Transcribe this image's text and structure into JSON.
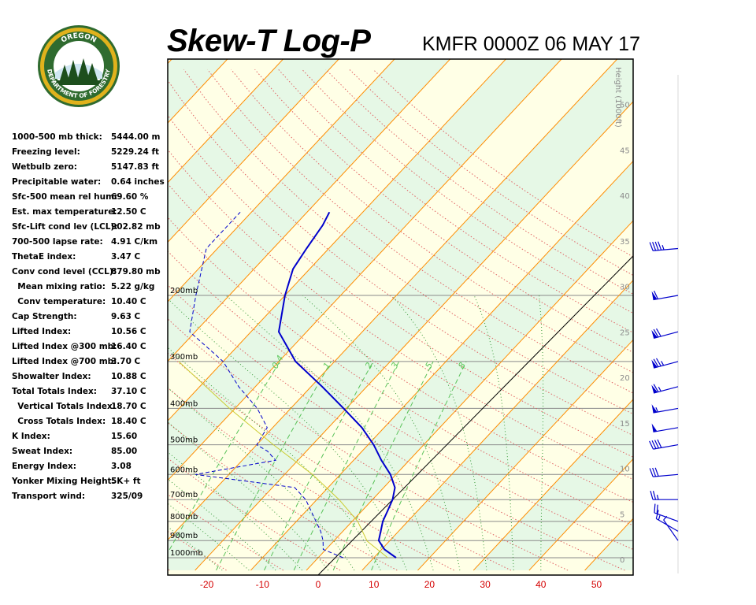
{
  "header": {
    "title": "Skew-T Log-P",
    "station": "KMFR 0000Z 06 MAY 17"
  },
  "logo": {
    "top_text": "OREGON",
    "bottom_text": "DEPARTMENT OF FORESTRY",
    "colors": {
      "ring": "#2f6b2f",
      "gold": "#e0b21c",
      "tree": "#1d4f1d"
    }
  },
  "indices": [
    {
      "label": "1000-500 mb thick:",
      "value": "5444.00 m"
    },
    {
      "label": "Freezing level:",
      "value": "5229.24 ft"
    },
    {
      "label": "Wetbulb zero:",
      "value": "5147.83 ft"
    },
    {
      "label": "Precipitable water:",
      "value": "0.64 inches"
    },
    {
      "label": "Sfc-500 mean rel hum:",
      "value": "69.60 %"
    },
    {
      "label": "Est. max temperature:",
      "value": "12.50 C"
    },
    {
      "label": "Sfc-Lift cond lev (LCL):",
      "value": "902.82 mb"
    },
    {
      "label": "700-500 lapse rate:",
      "value": "4.91 C/km"
    },
    {
      "label": "ThetaE index:",
      "value": "3.47 C"
    },
    {
      "label": "Conv cond level (CCL):",
      "value": "879.80 mb"
    },
    {
      "label": "  Mean mixing ratio:",
      "value": "5.22 g/kg"
    },
    {
      "label": "  Conv temperature:",
      "value": "10.40 C"
    },
    {
      "label": "Cap Strength:",
      "value": "9.63 C"
    },
    {
      "label": "Lifted Index:",
      "value": "10.56 C"
    },
    {
      "label": "Lifted Index @300 mb:",
      "value": "16.40 C"
    },
    {
      "label": "Lifted Index @700 mb:",
      "value": "3.70 C"
    },
    {
      "label": "Showalter Index:",
      "value": "10.88 C"
    },
    {
      "label": "Total Totals Index:",
      "value": "37.10 C"
    },
    {
      "label": "  Vertical Totals Index:",
      "value": "18.70 C"
    },
    {
      "label": "  Cross Totals Index:",
      "value": "18.40 C"
    },
    {
      "label": "K Index:",
      "value": "15.60"
    },
    {
      "label": "Sweat Index:",
      "value": "85.00"
    },
    {
      "label": "Energy Index:",
      "value": "3.08"
    },
    {
      "label": "Yonker Mixing Height:",
      "value": "5K+ ft"
    },
    {
      "label": "Transport wind:",
      "value": "325/09"
    }
  ],
  "chart_data": {
    "type": "line",
    "x_label_values": [
      "-20",
      "-10",
      "0",
      "10",
      "20",
      "30",
      "40",
      "50"
    ],
    "temp_axis": [
      -30,
      57
    ],
    "pressure_levels": [
      {
        "p": 200,
        "label": "200mb"
      },
      {
        "p": 300,
        "label": "300mb"
      },
      {
        "p": 400,
        "label": "400mb"
      },
      {
        "p": 500,
        "label": "500mb"
      },
      {
        "p": 600,
        "label": "600mb"
      },
      {
        "p": 700,
        "label": "700mb"
      },
      {
        "p": 800,
        "label": "800mb"
      },
      {
        "p": 900,
        "label": "900mb"
      },
      {
        "p": 1000,
        "label": "1000mb"
      }
    ],
    "height_axis_label": "Height (1000ft)",
    "height_ticks": [
      "0",
      "5",
      "10",
      "15",
      "20",
      "25",
      "30",
      "35",
      "40",
      "45",
      "50"
    ],
    "mixing_ratio_labels": [
      "0.4",
      "1",
      "2",
      "3",
      "5",
      "8"
    ],
    "series": [
      {
        "name": "temperature",
        "color": "#0000cc",
        "points": [
          [
            14,
            1000
          ],
          [
            10.5,
            950
          ],
          [
            8,
            900
          ],
          [
            6.8,
            850
          ],
          [
            5.5,
            800
          ],
          [
            4.6,
            750
          ],
          [
            3.6,
            700
          ],
          [
            2,
            650
          ],
          [
            -1,
            600
          ],
          [
            -5,
            550
          ],
          [
            -9,
            500
          ],
          [
            -14,
            450
          ],
          [
            -20.5,
            400
          ],
          [
            -28,
            350
          ],
          [
            -37,
            300
          ],
          [
            -45,
            250
          ],
          [
            -50,
            200
          ],
          [
            -53,
            170
          ],
          [
            -54,
            150
          ],
          [
            -55,
            130
          ],
          [
            -56,
            120
          ]
        ]
      },
      {
        "name": "dewpoint",
        "color": "#0000cc",
        "dashed": true,
        "points": [
          [
            4.5,
            1000
          ],
          [
            -0.5,
            950
          ],
          [
            -2,
            900
          ],
          [
            -4,
            850
          ],
          [
            -12,
            700
          ],
          [
            -16,
            650
          ],
          [
            -36,
            600
          ],
          [
            -24,
            550
          ],
          [
            -27,
            520
          ],
          [
            -30,
            500
          ],
          [
            -31,
            450
          ],
          [
            -36,
            400
          ],
          [
            -43,
            350
          ],
          [
            -50,
            300
          ],
          [
            -61,
            250
          ],
          [
            -66,
            200
          ],
          [
            -72,
            150
          ],
          [
            -72,
            120
          ]
        ]
      },
      {
        "name": "parcel",
        "color": "#cccc33",
        "points": [
          [
            12.5,
            1000
          ],
          [
            6,
            903
          ],
          [
            1,
            800
          ],
          [
            -6,
            700
          ],
          [
            -15,
            600
          ],
          [
            -27,
            500
          ],
          [
            -41,
            400
          ],
          [
            -58,
            300
          ]
        ]
      }
    ],
    "wind_barbs": [
      {
        "p": 900,
        "dir": 325,
        "kt": 9
      },
      {
        "p": 850,
        "dir": 300,
        "kt": 15
      },
      {
        "p": 800,
        "dir": 290,
        "kt": 20
      },
      {
        "p": 700,
        "dir": 270,
        "kt": 25
      },
      {
        "p": 600,
        "dir": 265,
        "kt": 30
      },
      {
        "p": 500,
        "dir": 260,
        "kt": 40
      },
      {
        "p": 450,
        "dir": 260,
        "kt": 50
      },
      {
        "p": 400,
        "dir": 260,
        "kt": 55
      },
      {
        "p": 350,
        "dir": 255,
        "kt": 65
      },
      {
        "p": 300,
        "dir": 255,
        "kt": 75
      },
      {
        "p": 250,
        "dir": 255,
        "kt": 70
      },
      {
        "p": 200,
        "dir": 260,
        "kt": 60
      },
      {
        "p": 150,
        "dir": 265,
        "kt": 45
      }
    ],
    "colors": {
      "isotherm": "#ff8c00",
      "dry_adiabat": "#e06464",
      "moist_adiabat": "#3a9a3a",
      "mixing_ratio": "#59c259",
      "band_light": "#ffffe6",
      "band_green": "#e6f8e6"
    }
  }
}
